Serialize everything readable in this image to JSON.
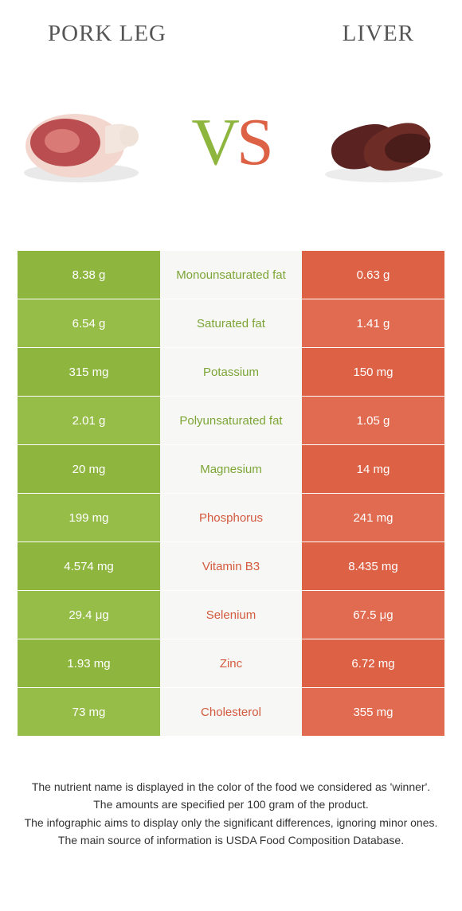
{
  "header": {
    "left_title": "Pork leg",
    "right_title": "Liver"
  },
  "vs": {
    "v": "V",
    "s": "S"
  },
  "colors": {
    "green_main": "#8eb63f",
    "green_alt": "#97bd49",
    "orange_main": "#dd6145",
    "orange_alt": "#e06b50",
    "mid_bg": "#f7f7f5",
    "label_green": "#7ca536",
    "label_orange": "#d35a3e"
  },
  "rows": [
    {
      "left": "8.38 g",
      "label": "Monounsaturated fat",
      "right": "0.63 g",
      "winner": "left"
    },
    {
      "left": "6.54 g",
      "label": "Saturated fat",
      "right": "1.41 g",
      "winner": "left"
    },
    {
      "left": "315 mg",
      "label": "Potassium",
      "right": "150 mg",
      "winner": "left"
    },
    {
      "left": "2.01 g",
      "label": "Polyunsaturated fat",
      "right": "1.05 g",
      "winner": "left"
    },
    {
      "left": "20 mg",
      "label": "Magnesium",
      "right": "14 mg",
      "winner": "left"
    },
    {
      "left": "199 mg",
      "label": "Phosphorus",
      "right": "241 mg",
      "winner": "right"
    },
    {
      "left": "4.574 mg",
      "label": "Vitamin B3",
      "right": "8.435 mg",
      "winner": "right"
    },
    {
      "left": "29.4 μg",
      "label": "Selenium",
      "right": "67.5 μg",
      "winner": "right"
    },
    {
      "left": "1.93 mg",
      "label": "Zinc",
      "right": "6.72 mg",
      "winner": "right"
    },
    {
      "left": "73 mg",
      "label": "Cholesterol",
      "right": "355 mg",
      "winner": "right"
    }
  ],
  "footnotes": {
    "l1": "The nutrient name is displayed in the color of the food we considered as 'winner'.",
    "l2": "The amounts are specified per 100 gram of the product.",
    "l3": "The infographic aims to display only the significant differences, ignoring minor ones.",
    "l4": "The main source of information is USDA Food Composition Database."
  }
}
